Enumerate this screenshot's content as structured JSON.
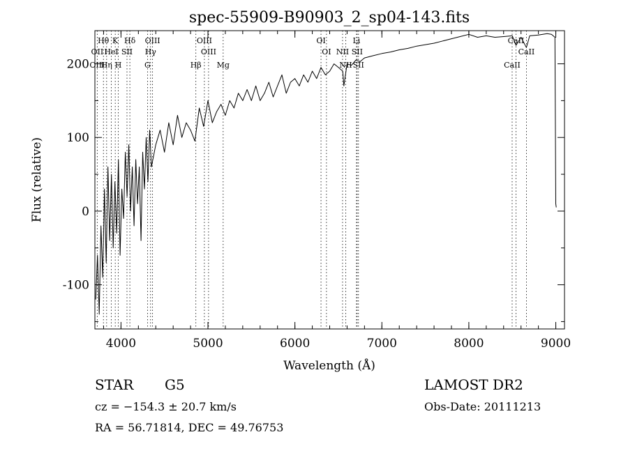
{
  "chart_data": {
    "type": "line",
    "title": "spec-55909-B90903_2_sp04-143.fits",
    "xlabel": "Wavelength (Å)",
    "ylabel": "Flux (relative)",
    "xlim": [
      3700,
      9100
    ],
    "ylim": [
      -160,
      245
    ],
    "xticks": [
      4000,
      5000,
      6000,
      7000,
      8000,
      9000
    ],
    "yticks": [
      -100,
      0,
      100,
      200
    ],
    "grid": false,
    "series": [
      {
        "name": "",
        "x": [
          3710,
          3730,
          3750,
          3770,
          3790,
          3810,
          3830,
          3850,
          3870,
          3890,
          3910,
          3930,
          3950,
          3970,
          3990,
          4010,
          4030,
          4050,
          4070,
          4090,
          4110,
          4130,
          4150,
          4170,
          4190,
          4210,
          4230,
          4250,
          4270,
          4290,
          4310,
          4330,
          4350,
          4400,
          4450,
          4500,
          4550,
          4600,
          4650,
          4700,
          4750,
          4800,
          4850,
          4900,
          4950,
          5000,
          5050,
          5100,
          5150,
          5200,
          5250,
          5300,
          5350,
          5400,
          5450,
          5500,
          5550,
          5600,
          5650,
          5700,
          5750,
          5800,
          5850,
          5900,
          5950,
          6000,
          6050,
          6100,
          6150,
          6200,
          6250,
          6300,
          6350,
          6400,
          6450,
          6500,
          6550,
          6563,
          6600,
          6650,
          6700,
          6750,
          6800,
          6900,
          7000,
          7100,
          7200,
          7300,
          7400,
          7500,
          7600,
          7700,
          7800,
          7900,
          8000,
          8100,
          8200,
          8300,
          8400,
          8500,
          8542,
          8600,
          8662,
          8700,
          8800,
          8900,
          8950,
          8990,
          9000,
          9005
        ],
        "y": [
          -120,
          -60,
          -140,
          -20,
          -90,
          30,
          -70,
          60,
          -40,
          50,
          -50,
          40,
          -30,
          70,
          -60,
          30,
          -10,
          80,
          20,
          90,
          0,
          60,
          -20,
          70,
          10,
          60,
          -40,
          80,
          30,
          100,
          40,
          110,
          60,
          90,
          110,
          80,
          120,
          90,
          130,
          100,
          120,
          110,
          95,
          140,
          115,
          150,
          120,
          135,
          145,
          130,
          150,
          140,
          160,
          150,
          165,
          150,
          170,
          150,
          160,
          175,
          155,
          170,
          185,
          160,
          175,
          180,
          170,
          185,
          175,
          190,
          180,
          195,
          185,
          190,
          200,
          195,
          190,
          170,
          200,
          198,
          205,
          203,
          208,
          211,
          214,
          216,
          219,
          221,
          224,
          226,
          228,
          231,
          234,
          237,
          240,
          236,
          238,
          236,
          237,
          238,
          225,
          236,
          222,
          238,
          239,
          241,
          240,
          236,
          10,
          5
        ]
      }
    ],
    "lines": [
      {
        "name": "Hθ",
        "wave": 3798,
        "row": 1
      },
      {
        "name": "OII",
        "wave": 3727,
        "row": 2
      },
      {
        "name": "OIII",
        "wave": 3727,
        "row": 3
      },
      {
        "name": "Hη",
        "wave": 3835,
        "row": 3
      },
      {
        "name": "K",
        "wave": 3934,
        "row": 1
      },
      {
        "name": "HeI",
        "wave": 3889,
        "row": 2
      },
      {
        "name": "H",
        "wave": 3969,
        "row": 3
      },
      {
        "name": "SII",
        "wave": 4069,
        "row": 2
      },
      {
        "name": "Hδ",
        "wave": 4102,
        "row": 1
      },
      {
        "name": "OIII",
        "wave": 4363,
        "row": 1
      },
      {
        "name": "Hγ",
        "wave": 4340,
        "row": 2
      },
      {
        "name": "G",
        "wave": 4305,
        "row": 3
      },
      {
        "name": "Hβ",
        "wave": 4861,
        "row": 3
      },
      {
        "name": "OIII",
        "wave": 4959,
        "row": 1
      },
      {
        "name": "OIII",
        "wave": 5007,
        "row": 2
      },
      {
        "name": "Mg",
        "wave": 5175,
        "row": 3
      },
      {
        "name": "OI",
        "wave": 6300,
        "row": 1
      },
      {
        "name": "OI",
        "wave": 6363,
        "row": 2
      },
      {
        "name": "NII",
        "wave": 6548,
        "row": 2
      },
      {
        "name": "NII",
        "wave": 6584,
        "row": 3
      },
      {
        "name": "SII",
        "wave": 6716,
        "row": 2
      },
      {
        "name": "SII",
        "wave": 6731,
        "row": 3
      },
      {
        "name": "Li",
        "wave": 6708,
        "row": 1
      },
      {
        "name": "CaII",
        "wave": 8498,
        "row": 3
      },
      {
        "name": "CaII",
        "wave": 8542,
        "row": 1
      },
      {
        "name": "CaII",
        "wave": 8662,
        "row": 2
      }
    ]
  },
  "info": {
    "object_class": "STAR",
    "subclass": "G5",
    "survey": "LAMOST DR2",
    "redshift": "cz = −154.3 ± 20.7 km/s",
    "obs_date": "Obs-Date: 20111213",
    "coords": "RA =  56.71814, DEC =  49.76753"
  }
}
